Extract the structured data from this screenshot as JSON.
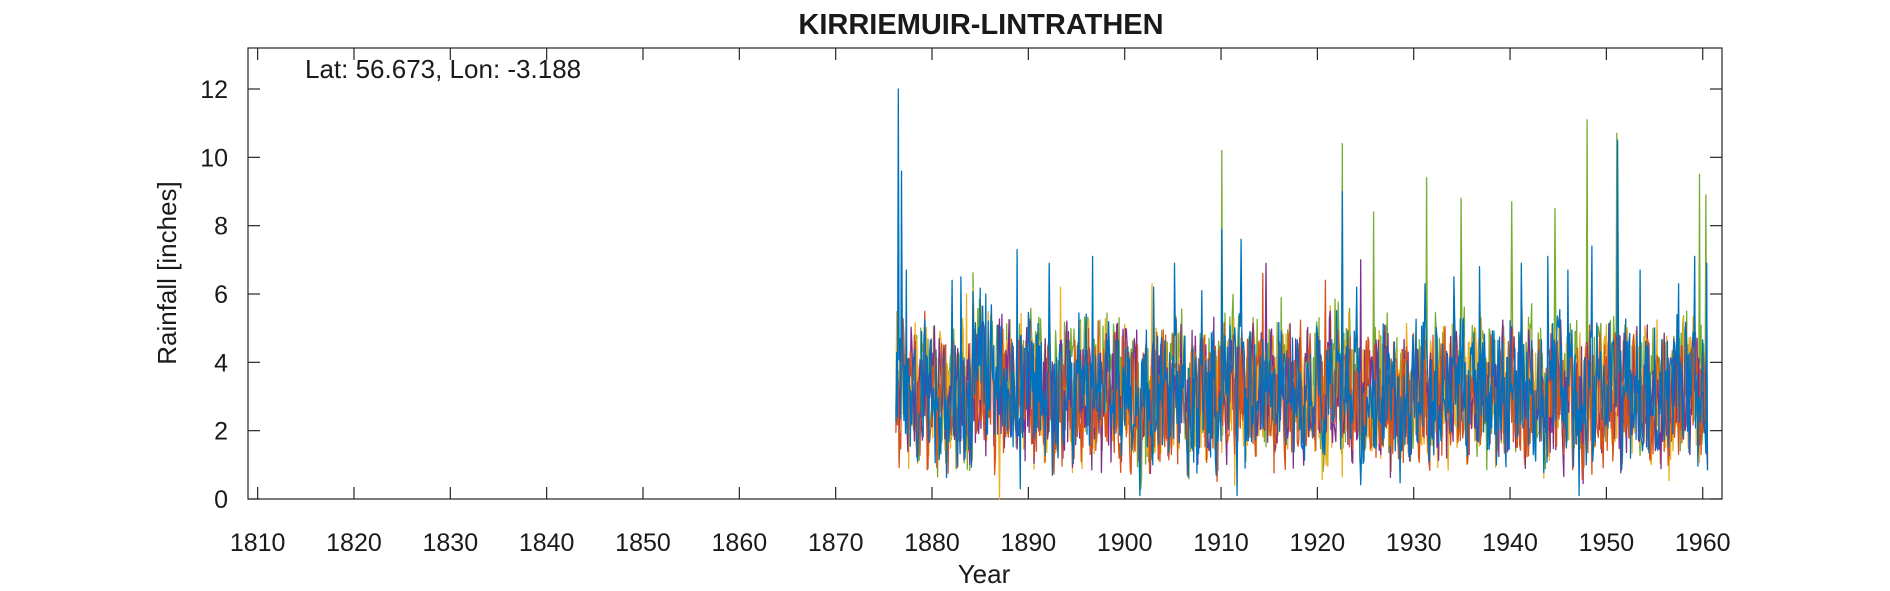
{
  "chart_data": {
    "type": "line",
    "title": "KIRRIEMUIR-LINTRATHEN",
    "annotation": "Lat: 56.673, Lon: -3.188",
    "xlabel": "Year",
    "ylabel": "Rainfall [inches]",
    "xlim": [
      1809,
      1962
    ],
    "ylim": [
      0,
      13.2
    ],
    "xticks": [
      "1810",
      "1820",
      "1830",
      "1840",
      "1850",
      "1860",
      "1870",
      "1880",
      "1890",
      "1900",
      "1910",
      "1920",
      "1930",
      "1940",
      "1950",
      "1960"
    ],
    "yticks": [
      "0",
      "2",
      "4",
      "6",
      "8",
      "10",
      "12"
    ],
    "grid": false,
    "legend": "none",
    "data_start_year": 1876.25,
    "data_end_year": 1960.5,
    "sampling": "monthly",
    "series": [
      {
        "color": "#77ac30",
        "peaks": [
          [
            1910.1,
            10.2
          ],
          [
            1922.6,
            10.4
          ],
          [
            1925.8,
            8.4
          ],
          [
            1931.3,
            9.4
          ],
          [
            1934.9,
            8.8
          ],
          [
            1940.2,
            8.7
          ],
          [
            1944.7,
            8.5
          ],
          [
            1948.0,
            11.1
          ],
          [
            1951.1,
            10.7
          ],
          [
            1959.7,
            9.5
          ],
          [
            1960.3,
            8.9
          ]
        ],
        "values": [
          3.6,
          3.1,
          3.2,
          3.5,
          2.7,
          2.5,
          2.9,
          2.3,
          4.2,
          3.7,
          3.3,
          3.4,
          3.2,
          3.6,
          3.4,
          3.1,
          2.9,
          3.5,
          3.3,
          3.4,
          3.0,
          3.5,
          3.4,
          3.5,
          3.1,
          2.3,
          2.6,
          3.2,
          3.2,
          3.6,
          2.6,
          3.1,
          3.0,
          3.0,
          3.9,
          3.8,
          3.2,
          3.6,
          3.3,
          3.5,
          3.4,
          3.2,
          3.1,
          3.4,
          2.6,
          4.0,
          3.1,
          3.5,
          2.8,
          2.9,
          3.5,
          3.0,
          2.9,
          3.1,
          3.4,
          3.0,
          3.4,
          3.2,
          3.6,
          3.3,
          3.3,
          3.1,
          3.0,
          3.2,
          3.4,
          3.4,
          3.2,
          2.4,
          3.6,
          2.9,
          3.3,
          2.8,
          3.4,
          3.3,
          3.5,
          3.2,
          3.5,
          3.1,
          3.0,
          3.0,
          2.9,
          3.5,
          3.7,
          3.2,
          2.9
        ]
      },
      {
        "color": "#edb120",
        "peaks": [
          [
            1883.6,
            6.0
          ],
          [
            1887.0,
            0.0
          ],
          [
            1893.3,
            6.2
          ],
          [
            1902.8,
            6.3
          ],
          [
            1911.4,
            0.4
          ]
        ],
        "values": [
          3.4,
          3.1,
          2.9,
          3.3,
          3.0,
          2.8,
          3.2,
          2.5,
          3.8,
          3.5,
          3.1,
          3.2,
          3.0,
          3.3,
          3.1,
          2.9,
          2.8,
          3.1,
          3.0,
          3.1,
          2.8,
          3.2,
          3.1,
          3.2,
          2.9,
          2.4,
          2.6,
          3.0,
          3.0,
          3.3,
          2.6,
          2.9,
          2.8,
          2.8,
          3.5,
          3.4,
          3.0,
          3.3,
          3.1,
          3.2,
          3.1,
          3.0,
          2.9,
          3.1,
          2.5,
          3.6,
          2.9,
          3.2,
          2.7,
          2.8,
          3.2,
          2.8,
          2.8,
          2.9,
          3.1,
          2.8,
          3.1,
          3.0,
          3.3,
          3.1,
          3.1,
          2.9,
          2.8,
          3.0,
          3.1,
          3.1,
          3.0,
          2.4,
          3.3,
          2.8,
          3.1,
          2.7,
          3.1,
          3.0,
          3.2,
          3.0,
          3.2,
          2.9,
          2.8,
          2.8,
          2.7,
          3.2,
          3.4,
          3.0,
          2.8
        ]
      },
      {
        "color": "#7e2f8e",
        "peaks": [
          [
            1914.7,
            6.9
          ],
          [
            1921.3,
            5.5
          ],
          [
            1924.5,
            7.0
          ]
        ],
        "values": [
          3.2,
          3.0,
          2.9,
          3.1,
          2.9,
          2.8,
          3.0,
          2.6,
          3.4,
          3.2,
          3.0,
          3.0,
          2.9,
          3.1,
          3.0,
          2.9,
          2.8,
          3.0,
          2.9,
          3.0,
          2.8,
          3.0,
          3.0,
          3.0,
          2.9,
          2.6,
          2.7,
          2.9,
          2.9,
          3.1,
          2.7,
          2.9,
          2.8,
          2.8,
          3.2,
          3.1,
          2.9,
          3.1,
          3.0,
          3.0,
          3.0,
          2.9,
          2.9,
          3.0,
          2.7,
          3.3,
          2.9,
          3.0,
          2.8,
          2.8,
          3.0,
          2.8,
          2.8,
          2.9,
          3.0,
          2.8,
          3.0,
          2.9,
          3.1,
          3.0,
          3.0,
          2.9,
          2.8,
          2.9,
          3.0,
          3.0,
          2.9,
          2.6,
          3.1,
          2.8,
          3.0,
          2.7,
          3.0,
          2.9,
          3.0,
          2.9,
          3.0,
          2.9,
          2.8,
          2.8,
          2.8,
          3.0,
          3.1,
          2.9,
          2.8
        ]
      },
      {
        "color": "#d95319",
        "peaks": [
          [
            1914.3,
            6.6
          ],
          [
            1920.8,
            6.4
          ]
        ],
        "values": [
          3.0,
          2.9,
          2.8,
          3.0,
          2.8,
          2.7,
          2.9,
          2.6,
          3.2,
          3.0,
          2.9,
          2.9,
          2.8,
          3.0,
          2.9,
          2.8,
          2.7,
          2.9,
          2.8,
          2.9,
          2.7,
          2.9,
          2.9,
          2.9,
          2.8,
          2.6,
          2.7,
          2.8,
          2.8,
          3.0,
          2.7,
          2.8,
          2.7,
          2.7,
          3.1,
          3.0,
          2.8,
          3.0,
          2.9,
          2.9,
          2.9,
          2.8,
          2.8,
          2.9,
          2.7,
          3.1,
          2.8,
          2.9,
          2.7,
          2.7,
          2.9,
          2.7,
          2.7,
          2.8,
          2.9,
          2.7,
          2.9,
          2.8,
          3.0,
          2.9,
          2.9,
          2.8,
          2.7,
          2.8,
          2.9,
          2.9,
          2.8,
          2.6,
          3.0,
          2.7,
          2.9,
          2.7,
          2.9,
          2.8,
          2.9,
          2.8,
          2.9,
          2.8,
          2.7,
          2.7,
          2.7,
          2.9,
          3.0,
          2.8,
          2.7
        ]
      },
      {
        "color": "#0072bd",
        "peaks": [
          [
            1876.5,
            12.0
          ],
          [
            1876.8,
            9.6
          ],
          [
            1877.3,
            6.7
          ],
          [
            1882.1,
            6.4
          ],
          [
            1883.0,
            6.5
          ],
          [
            1885.6,
            6.0
          ],
          [
            1888.8,
            7.3
          ],
          [
            1889.2,
            0.3
          ],
          [
            1892.2,
            6.9
          ],
          [
            1896.7,
            7.1
          ],
          [
            1903.0,
            6.2
          ],
          [
            1905.2,
            6.9
          ],
          [
            1908.0,
            6.1
          ],
          [
            1910.1,
            7.9
          ],
          [
            1911.7,
            0.1
          ],
          [
            1912.1,
            7.6
          ],
          [
            1922.6,
            9.0
          ],
          [
            1924.1,
            6.2
          ],
          [
            1931.2,
            6.3
          ],
          [
            1934.2,
            6.5
          ],
          [
            1936.8,
            6.8
          ],
          [
            1941.2,
            6.9
          ],
          [
            1943.9,
            7.1
          ],
          [
            1946.0,
            6.7
          ],
          [
            1947.2,
            0.1
          ],
          [
            1948.5,
            7.4
          ],
          [
            1951.2,
            10.5
          ],
          [
            1953.5,
            6.7
          ],
          [
            1957.5,
            6.3
          ],
          [
            1959.2,
            7.1
          ],
          [
            1960.4,
            6.9
          ]
        ],
        "values": [
          3.3,
          2.9,
          3.0,
          3.2,
          2.5,
          2.4,
          2.7,
          2.2,
          3.9,
          3.5,
          3.1,
          3.2,
          3.0,
          3.4,
          3.2,
          2.9,
          2.7,
          3.3,
          3.1,
          3.2,
          2.8,
          3.3,
          3.2,
          3.3,
          2.9,
          2.2,
          2.5,
          3.0,
          3.0,
          3.4,
          2.4,
          2.9,
          2.8,
          2.8,
          3.6,
          3.5,
          3.0,
          3.4,
          3.1,
          3.3,
          3.2,
          3.0,
          2.9,
          3.2,
          2.4,
          3.7,
          2.9,
          3.3,
          2.6,
          2.7,
          3.3,
          2.8,
          2.7,
          2.9,
          3.2,
          2.8,
          3.2,
          3.0,
          3.4,
          3.1,
          3.1,
          2.9,
          2.8,
          3.0,
          3.2,
          3.2,
          3.0,
          2.3,
          3.4,
          2.7,
          3.1,
          2.6,
          3.2,
          3.1,
          3.3,
          3.0,
          3.3,
          2.9,
          2.8,
          2.8,
          2.7,
          3.3,
          3.5,
          3.0,
          2.7
        ]
      }
    ]
  }
}
